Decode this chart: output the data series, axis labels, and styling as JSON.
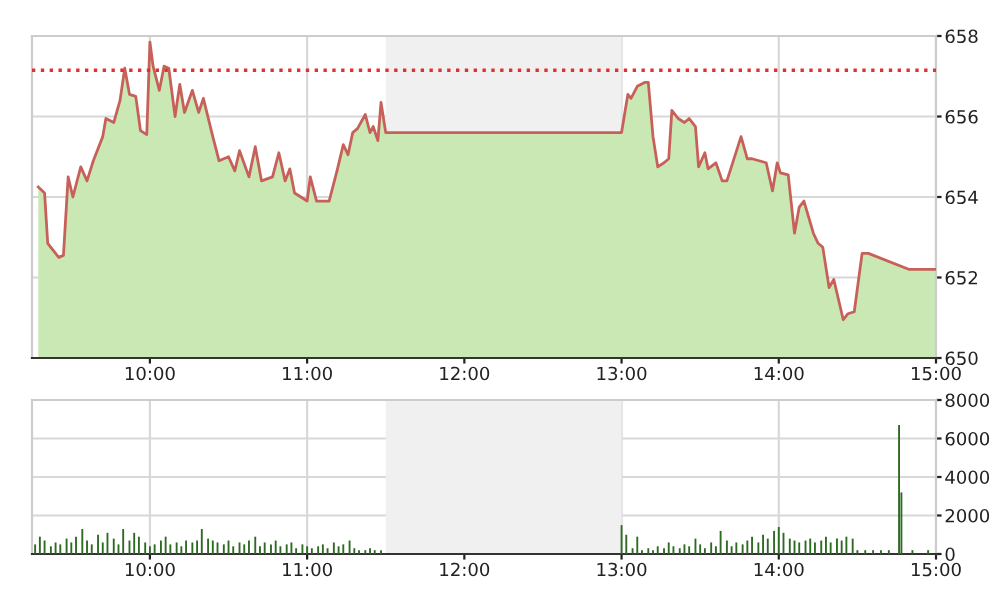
{
  "chart_data": [
    {
      "type": "area",
      "xlim": [
        9.25,
        15
      ],
      "xticks": [
        {
          "value": 10,
          "label": "10:00"
        },
        {
          "value": 11,
          "label": "11:00"
        },
        {
          "value": 12,
          "label": "12:00"
        },
        {
          "value": 13,
          "label": "13:00"
        },
        {
          "value": 14,
          "label": "14:00"
        },
        {
          "value": 15,
          "label": "15:00"
        }
      ],
      "ylim": [
        650,
        658
      ],
      "yticks": [
        650,
        652,
        654,
        656,
        658
      ],
      "grid": true,
      "ref_lines": [
        {
          "axis": "y",
          "value": 657.15,
          "color": "#e03030",
          "line_style": "dotted"
        }
      ],
      "bands": [
        {
          "axis": "x",
          "from": 11.5,
          "to": 13,
          "color": "#f0f0f0"
        }
      ],
      "series": [
        {
          "type": "area",
          "color": "#c9e8b4",
          "x": [
            9.29,
            9.33,
            9.35,
            9.42,
            9.45,
            9.48,
            9.51,
            9.56,
            9.6,
            9.64,
            9.7,
            9.72,
            9.77,
            9.81,
            9.84,
            9.87,
            9.91,
            9.94,
            9.98,
            10.0,
            10.02,
            10.06,
            10.09,
            10.12,
            10.16,
            10.19,
            10.22,
            10.27,
            10.31,
            10.34,
            10.4,
            10.44,
            10.5,
            10.54,
            10.57,
            10.63,
            10.67,
            10.71,
            10.78,
            10.82,
            10.86,
            10.89,
            10.92,
            11.0,
            11.02,
            11.06,
            11.14,
            11.19,
            11.23,
            11.26,
            11.29,
            11.32,
            11.37,
            11.4,
            11.42,
            11.45,
            11.47,
            11.5,
            13.0,
            13.04,
            13.06,
            13.1,
            13.15,
            13.17,
            13.2,
            13.23,
            13.27,
            13.3,
            13.32,
            13.36,
            13.4,
            13.43,
            13.47,
            13.49,
            13.53,
            13.55,
            13.6,
            13.64,
            13.67,
            13.76,
            13.8,
            13.83,
            13.92,
            13.96,
            13.99,
            14.01,
            14.06,
            14.1,
            14.13,
            14.16,
            14.22,
            14.25,
            14.28,
            14.32,
            14.35,
            14.41,
            14.44,
            14.48,
            14.53,
            14.55,
            14.57,
            14.83,
            14.86,
            15.0
          ],
          "values": [
            654.25,
            654.1,
            652.85,
            652.5,
            652.55,
            654.5,
            654.0,
            654.75,
            654.4,
            654.9,
            655.5,
            655.95,
            655.85,
            656.4,
            657.2,
            656.55,
            656.5,
            655.65,
            655.55,
            657.85,
            657.25,
            656.65,
            657.25,
            657.2,
            656.0,
            656.8,
            656.1,
            656.65,
            656.1,
            656.45,
            655.5,
            654.9,
            655.0,
            654.65,
            655.15,
            654.5,
            655.25,
            654.4,
            654.5,
            655.1,
            654.4,
            654.7,
            654.1,
            653.9,
            654.5,
            653.9,
            653.9,
            654.65,
            655.3,
            655.05,
            655.6,
            655.7,
            656.05,
            655.6,
            655.75,
            655.4,
            656.35,
            655.6,
            655.6,
            656.55,
            656.45,
            656.75,
            656.85,
            656.85,
            655.5,
            654.75,
            654.85,
            654.95,
            656.15,
            655.95,
            655.85,
            655.95,
            655.75,
            654.75,
            655.1,
            654.7,
            654.85,
            654.4,
            654.4,
            655.5,
            654.95,
            654.95,
            654.85,
            654.15,
            654.85,
            654.6,
            654.55,
            653.1,
            653.75,
            653.9,
            653.1,
            652.85,
            652.75,
            651.75,
            651.95,
            650.95,
            651.1,
            651.15,
            652.6,
            652.6,
            652.6,
            652.2,
            652.2,
            652.2
          ]
        },
        {
          "type": "line",
          "color": "#c8605a",
          "x": [
            9.29,
            9.33,
            9.35,
            9.42,
            9.45,
            9.48,
            9.51,
            9.56,
            9.6,
            9.64,
            9.7,
            9.72,
            9.77,
            9.81,
            9.84,
            9.87,
            9.91,
            9.94,
            9.98,
            10.0,
            10.02,
            10.06,
            10.09,
            10.12,
            10.16,
            10.19,
            10.22,
            10.27,
            10.31,
            10.34,
            10.4,
            10.44,
            10.5,
            10.54,
            10.57,
            10.63,
            10.67,
            10.71,
            10.78,
            10.82,
            10.86,
            10.89,
            10.92,
            11.0,
            11.02,
            11.06,
            11.14,
            11.19,
            11.23,
            11.26,
            11.29,
            11.32,
            11.37,
            11.4,
            11.42,
            11.45,
            11.47,
            11.5,
            13.0,
            13.04,
            13.06,
            13.1,
            13.15,
            13.17,
            13.2,
            13.23,
            13.27,
            13.3,
            13.32,
            13.36,
            13.4,
            13.43,
            13.47,
            13.49,
            13.53,
            13.55,
            13.6,
            13.64,
            13.67,
            13.76,
            13.8,
            13.83,
            13.92,
            13.96,
            13.99,
            14.01,
            14.06,
            14.1,
            14.13,
            14.16,
            14.22,
            14.25,
            14.28,
            14.32,
            14.35,
            14.41,
            14.44,
            14.48,
            14.53,
            14.55,
            14.57,
            14.83,
            14.86,
            15.0
          ],
          "values": [
            654.25,
            654.1,
            652.85,
            652.5,
            652.55,
            654.5,
            654.0,
            654.75,
            654.4,
            654.9,
            655.5,
            655.95,
            655.85,
            656.4,
            657.2,
            656.55,
            656.5,
            655.65,
            655.55,
            657.85,
            657.25,
            656.65,
            657.25,
            657.2,
            656.0,
            656.8,
            656.1,
            656.65,
            656.1,
            656.45,
            655.5,
            654.9,
            655.0,
            654.65,
            655.15,
            654.5,
            655.25,
            654.4,
            654.5,
            655.1,
            654.4,
            654.7,
            654.1,
            653.9,
            654.5,
            653.9,
            653.9,
            654.65,
            655.3,
            655.05,
            655.6,
            655.7,
            656.05,
            655.6,
            655.75,
            655.4,
            656.35,
            655.6,
            655.6,
            656.55,
            656.45,
            656.75,
            656.85,
            656.85,
            655.5,
            654.75,
            654.85,
            654.95,
            656.15,
            655.95,
            655.85,
            655.95,
            655.75,
            654.75,
            655.1,
            654.7,
            654.85,
            654.4,
            654.4,
            655.5,
            654.95,
            654.95,
            654.85,
            654.15,
            654.85,
            654.6,
            654.55,
            653.1,
            653.75,
            653.9,
            653.1,
            652.85,
            652.75,
            651.75,
            651.95,
            650.95,
            651.1,
            651.15,
            652.6,
            652.6,
            652.6,
            652.2,
            652.2,
            652.2
          ]
        }
      ]
    },
    {
      "type": "bar",
      "xlim": [
        9.25,
        15
      ],
      "xticks": [
        {
          "value": 10,
          "label": "10:00"
        },
        {
          "value": 11,
          "label": "11:00"
        },
        {
          "value": 12,
          "label": "12:00"
        },
        {
          "value": 13,
          "label": "13:00"
        },
        {
          "value": 14,
          "label": "14:00"
        },
        {
          "value": 15,
          "label": "15:00"
        }
      ],
      "ylim": [
        0,
        8000
      ],
      "yticks": [
        0,
        2000,
        4000,
        6000,
        8000
      ],
      "grid": true,
      "bands": [
        {
          "axis": "x",
          "from": 11.5,
          "to": 13,
          "color": "#f0f0f0"
        }
      ],
      "series": [
        {
          "color": "#2d6b22",
          "x": [
            9.27,
            9.3,
            9.33,
            9.37,
            9.4,
            9.43,
            9.47,
            9.5,
            9.53,
            9.57,
            9.6,
            9.63,
            9.67,
            9.7,
            9.73,
            9.77,
            9.8,
            9.83,
            9.87,
            9.9,
            9.93,
            9.97,
            10.0,
            10.03,
            10.07,
            10.1,
            10.13,
            10.17,
            10.2,
            10.23,
            10.27,
            10.3,
            10.33,
            10.37,
            10.4,
            10.43,
            10.47,
            10.5,
            10.53,
            10.57,
            10.6,
            10.63,
            10.67,
            10.7,
            10.73,
            10.77,
            10.8,
            10.83,
            10.87,
            10.9,
            10.93,
            10.97,
            11.0,
            11.03,
            11.07,
            11.1,
            11.13,
            11.17,
            11.2,
            11.23,
            11.27,
            11.3,
            11.33,
            11.37,
            11.4,
            11.43,
            11.47,
            13.0,
            13.03,
            13.07,
            13.1,
            13.13,
            13.17,
            13.2,
            13.23,
            13.27,
            13.3,
            13.33,
            13.37,
            13.4,
            13.43,
            13.47,
            13.5,
            13.53,
            13.57,
            13.6,
            13.63,
            13.67,
            13.7,
            13.73,
            13.77,
            13.8,
            13.83,
            13.87,
            13.9,
            13.93,
            13.97,
            14.0,
            14.03,
            14.07,
            14.1,
            14.13,
            14.17,
            14.2,
            14.23,
            14.27,
            14.3,
            14.33,
            14.37,
            14.4,
            14.43,
            14.47,
            14.5,
            14.55,
            14.6,
            14.65,
            14.7,
            14.765,
            14.78,
            14.85,
            14.95
          ],
          "values": [
            500,
            900,
            700,
            400,
            600,
            500,
            800,
            600,
            900,
            1300,
            700,
            500,
            1000,
            600,
            1100,
            800,
            500,
            1300,
            700,
            1100,
            900,
            600,
            400,
            500,
            700,
            900,
            500,
            600,
            400,
            700,
            600,
            700,
            1300,
            800,
            700,
            600,
            500,
            700,
            400,
            600,
            500,
            700,
            900,
            400,
            600,
            500,
            700,
            400,
            500,
            600,
            300,
            500,
            400,
            300,
            400,
            500,
            300,
            600,
            400,
            500,
            700,
            300,
            200,
            200,
            300,
            200,
            200,
            1500,
            1000,
            300,
            900,
            200,
            300,
            200,
            400,
            300,
            600,
            400,
            300,
            500,
            400,
            800,
            500,
            300,
            600,
            400,
            1200,
            700,
            400,
            600,
            500,
            700,
            900,
            600,
            1000,
            800,
            1200,
            1400,
            1100,
            800,
            700,
            600,
            700,
            800,
            600,
            700,
            900,
            600,
            800,
            700,
            900,
            800,
            200,
            200,
            200,
            200,
            200,
            6700,
            3200,
            200,
            200
          ]
        }
      ]
    }
  ]
}
